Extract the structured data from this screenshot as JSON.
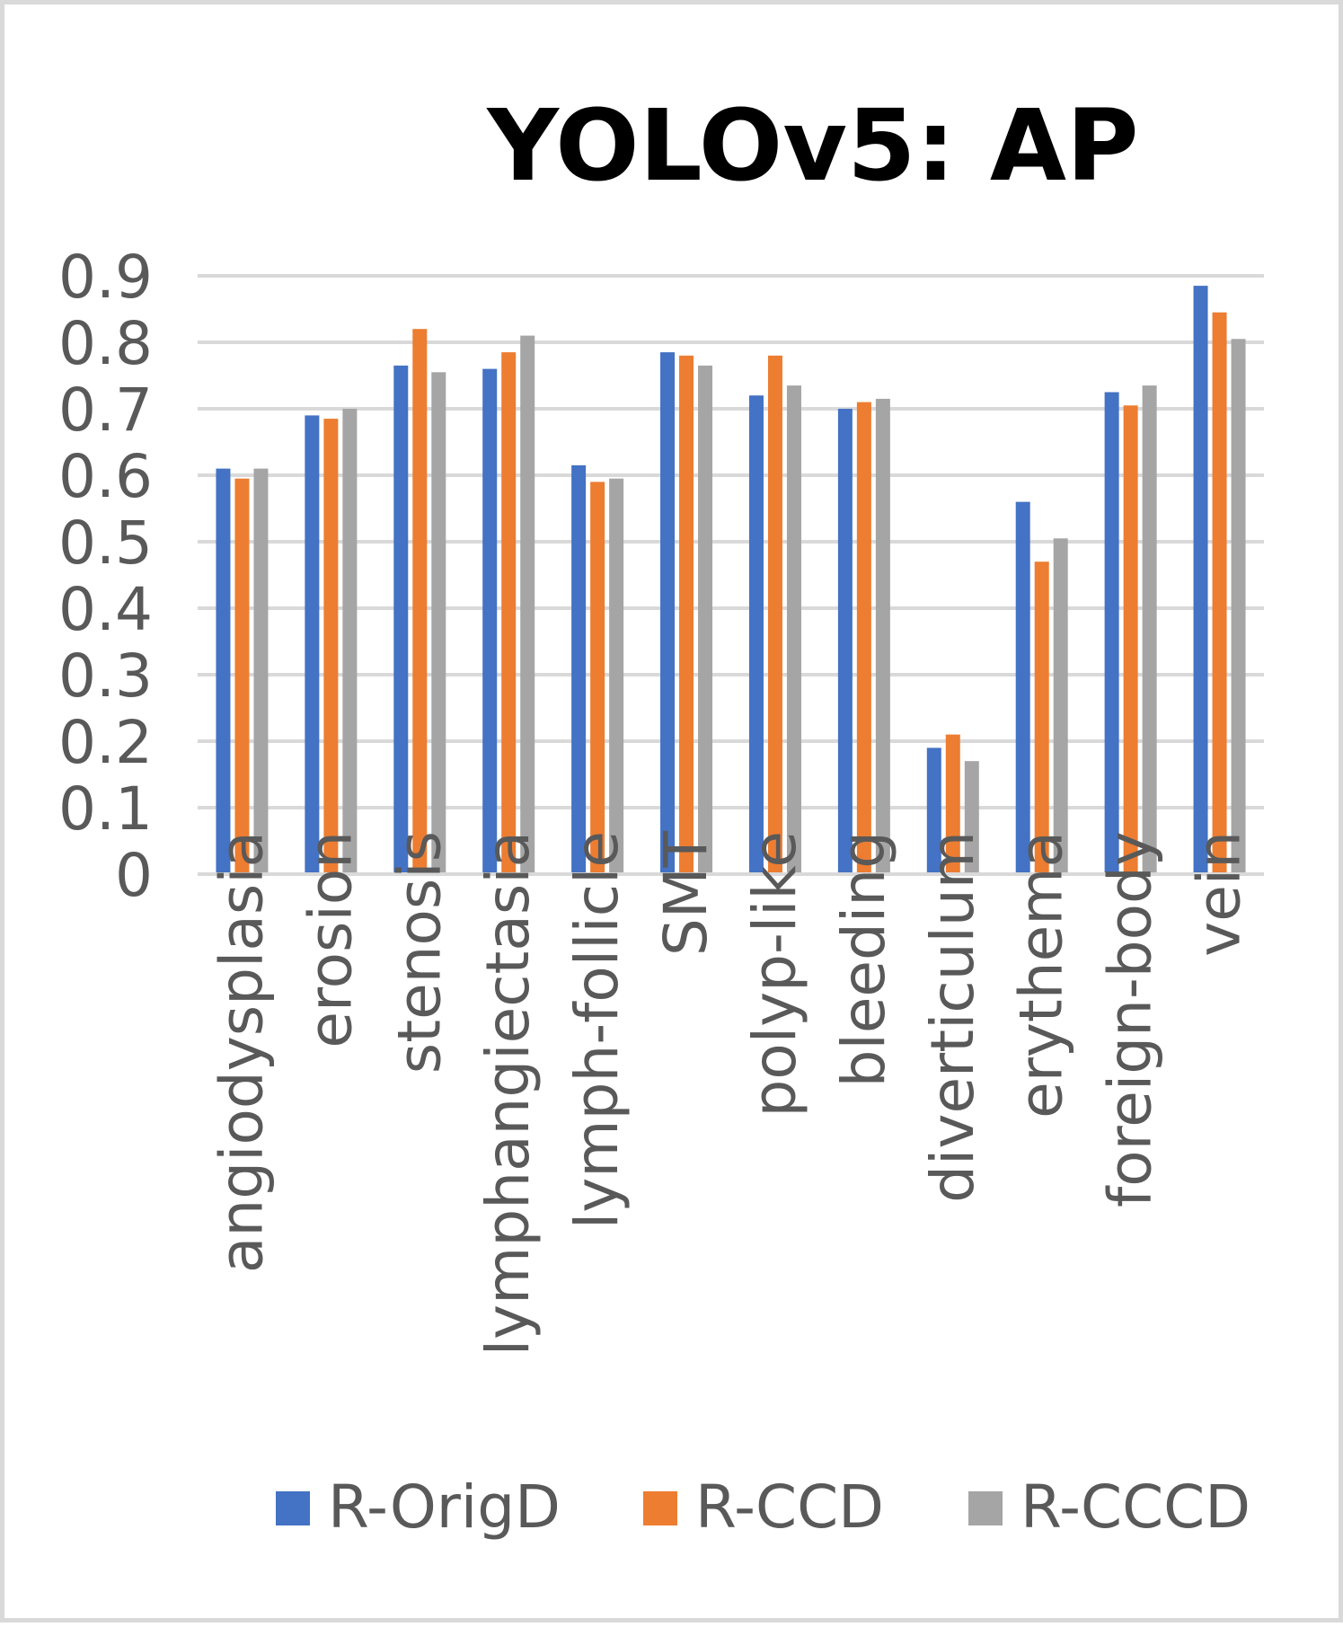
{
  "chart_data": {
    "type": "bar",
    "title": "YOLOv5: AP",
    "xlabel": "",
    "ylabel": "",
    "ylim": [
      0,
      0.9
    ],
    "yticks": [
      "0",
      "0.1",
      "0.2",
      "0.3",
      "0.4",
      "0.5",
      "0.6",
      "0.7",
      "0.8",
      "0.9"
    ],
    "grid": true,
    "legend_position": "bottom",
    "categories": [
      "angiodysplasia",
      "erosion",
      "stenosis",
      "lymphangiectasia",
      "lymph-follicle",
      "SMT",
      "polyp-like",
      "bleeding",
      "diverticulum",
      "erythema",
      "foreign-body",
      "vein"
    ],
    "series": [
      {
        "name": "R-OrigD",
        "color": "#4472c4",
        "values": [
          0.61,
          0.69,
          0.765,
          0.76,
          0.615,
          0.785,
          0.72,
          0.7,
          0.19,
          0.56,
          0.725,
          0.885
        ]
      },
      {
        "name": "R-CCD",
        "color": "#ed7d31",
        "values": [
          0.595,
          0.685,
          0.82,
          0.785,
          0.59,
          0.78,
          0.78,
          0.71,
          0.21,
          0.47,
          0.705,
          0.845
        ]
      },
      {
        "name": "R-CCCD",
        "color": "#a5a5a5",
        "values": [
          0.61,
          0.7,
          0.755,
          0.81,
          0.595,
          0.765,
          0.735,
          0.715,
          0.17,
          0.505,
          0.735,
          0.805
        ]
      }
    ]
  }
}
